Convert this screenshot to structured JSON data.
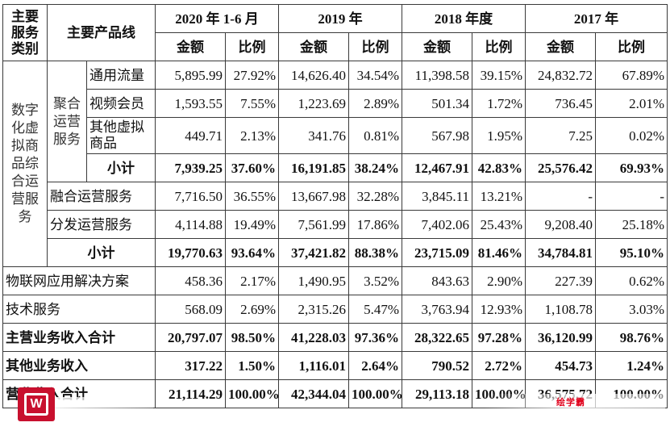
{
  "header": {
    "col_category": "主要服务类别",
    "col_product": "主要产品线",
    "periods": [
      "2020 年 1-6 月",
      "2019 年",
      "2018 年度",
      "2017 年"
    ],
    "amount": "金额",
    "ratio": "比例"
  },
  "groups": {
    "digital": "数字化虚拟商品综合运营服务",
    "aggregate": "聚合运营服务"
  },
  "rows": [
    {
      "label": "通用流量",
      "values": [
        "5,895.99",
        "27.92%",
        "14,626.40",
        "34.54%",
        "11,398.58",
        "39.15%",
        "24,832.72",
        "67.89%"
      ]
    },
    {
      "label": "视频会员",
      "values": [
        "1,593.55",
        "7.55%",
        "1,223.69",
        "2.89%",
        "501.34",
        "1.72%",
        "736.45",
        "2.01%"
      ]
    },
    {
      "label": "其他虚拟商品",
      "values": [
        "449.71",
        "2.13%",
        "341.76",
        "0.81%",
        "567.98",
        "1.95%",
        "7.25",
        "0.02%"
      ]
    },
    {
      "label": "小计",
      "values": [
        "7,939.25",
        "37.60%",
        "16,191.85",
        "38.24%",
        "12,467.91",
        "42.83%",
        "25,576.42",
        "69.93%"
      ]
    },
    {
      "label": "融合运营服务",
      "values": [
        "7,716.50",
        "36.55%",
        "13,667.98",
        "32.28%",
        "3,845.11",
        "13.21%",
        "-",
        "-"
      ]
    },
    {
      "label": "分发运营服务",
      "values": [
        "4,114.88",
        "19.49%",
        "7,561.99",
        "17.86%",
        "7,402.06",
        "25.43%",
        "9,208.40",
        "25.18%"
      ]
    },
    {
      "label": "小计",
      "values": [
        "19,770.63",
        "93.64%",
        "37,421.82",
        "88.38%",
        "23,715.09",
        "81.46%",
        "34,784.81",
        "95.10%"
      ]
    },
    {
      "label": "物联网应用解决方案",
      "values": [
        "458.36",
        "2.17%",
        "1,490.95",
        "3.52%",
        "843.63",
        "2.90%",
        "227.39",
        "0.62%"
      ]
    },
    {
      "label": "技术服务",
      "values": [
        "568.09",
        "2.69%",
        "2,315.26",
        "5.47%",
        "3,763.94",
        "12.93%",
        "1,108.78",
        "3.03%"
      ]
    },
    {
      "label": "主营业务收入合计",
      "values": [
        "20,797.07",
        "98.50%",
        "41,228.03",
        "97.36%",
        "28,322.65",
        "97.28%",
        "36,120.99",
        "98.76%"
      ]
    },
    {
      "label": "其他业务收入",
      "values": [
        "317.22",
        "1.50%",
        "1,116.01",
        "2.64%",
        "790.52",
        "2.72%",
        "454.73",
        "1.24%"
      ]
    },
    {
      "label": "营业收入合计",
      "values": [
        "21,114.29",
        "100.00%",
        "42,344.04",
        "100.00%",
        "29,113.18",
        "100.00%",
        "36,575.72",
        "100.00%"
      ]
    }
  ],
  "watermark": {
    "text": "绘学霸",
    "logo_letter": "W"
  }
}
